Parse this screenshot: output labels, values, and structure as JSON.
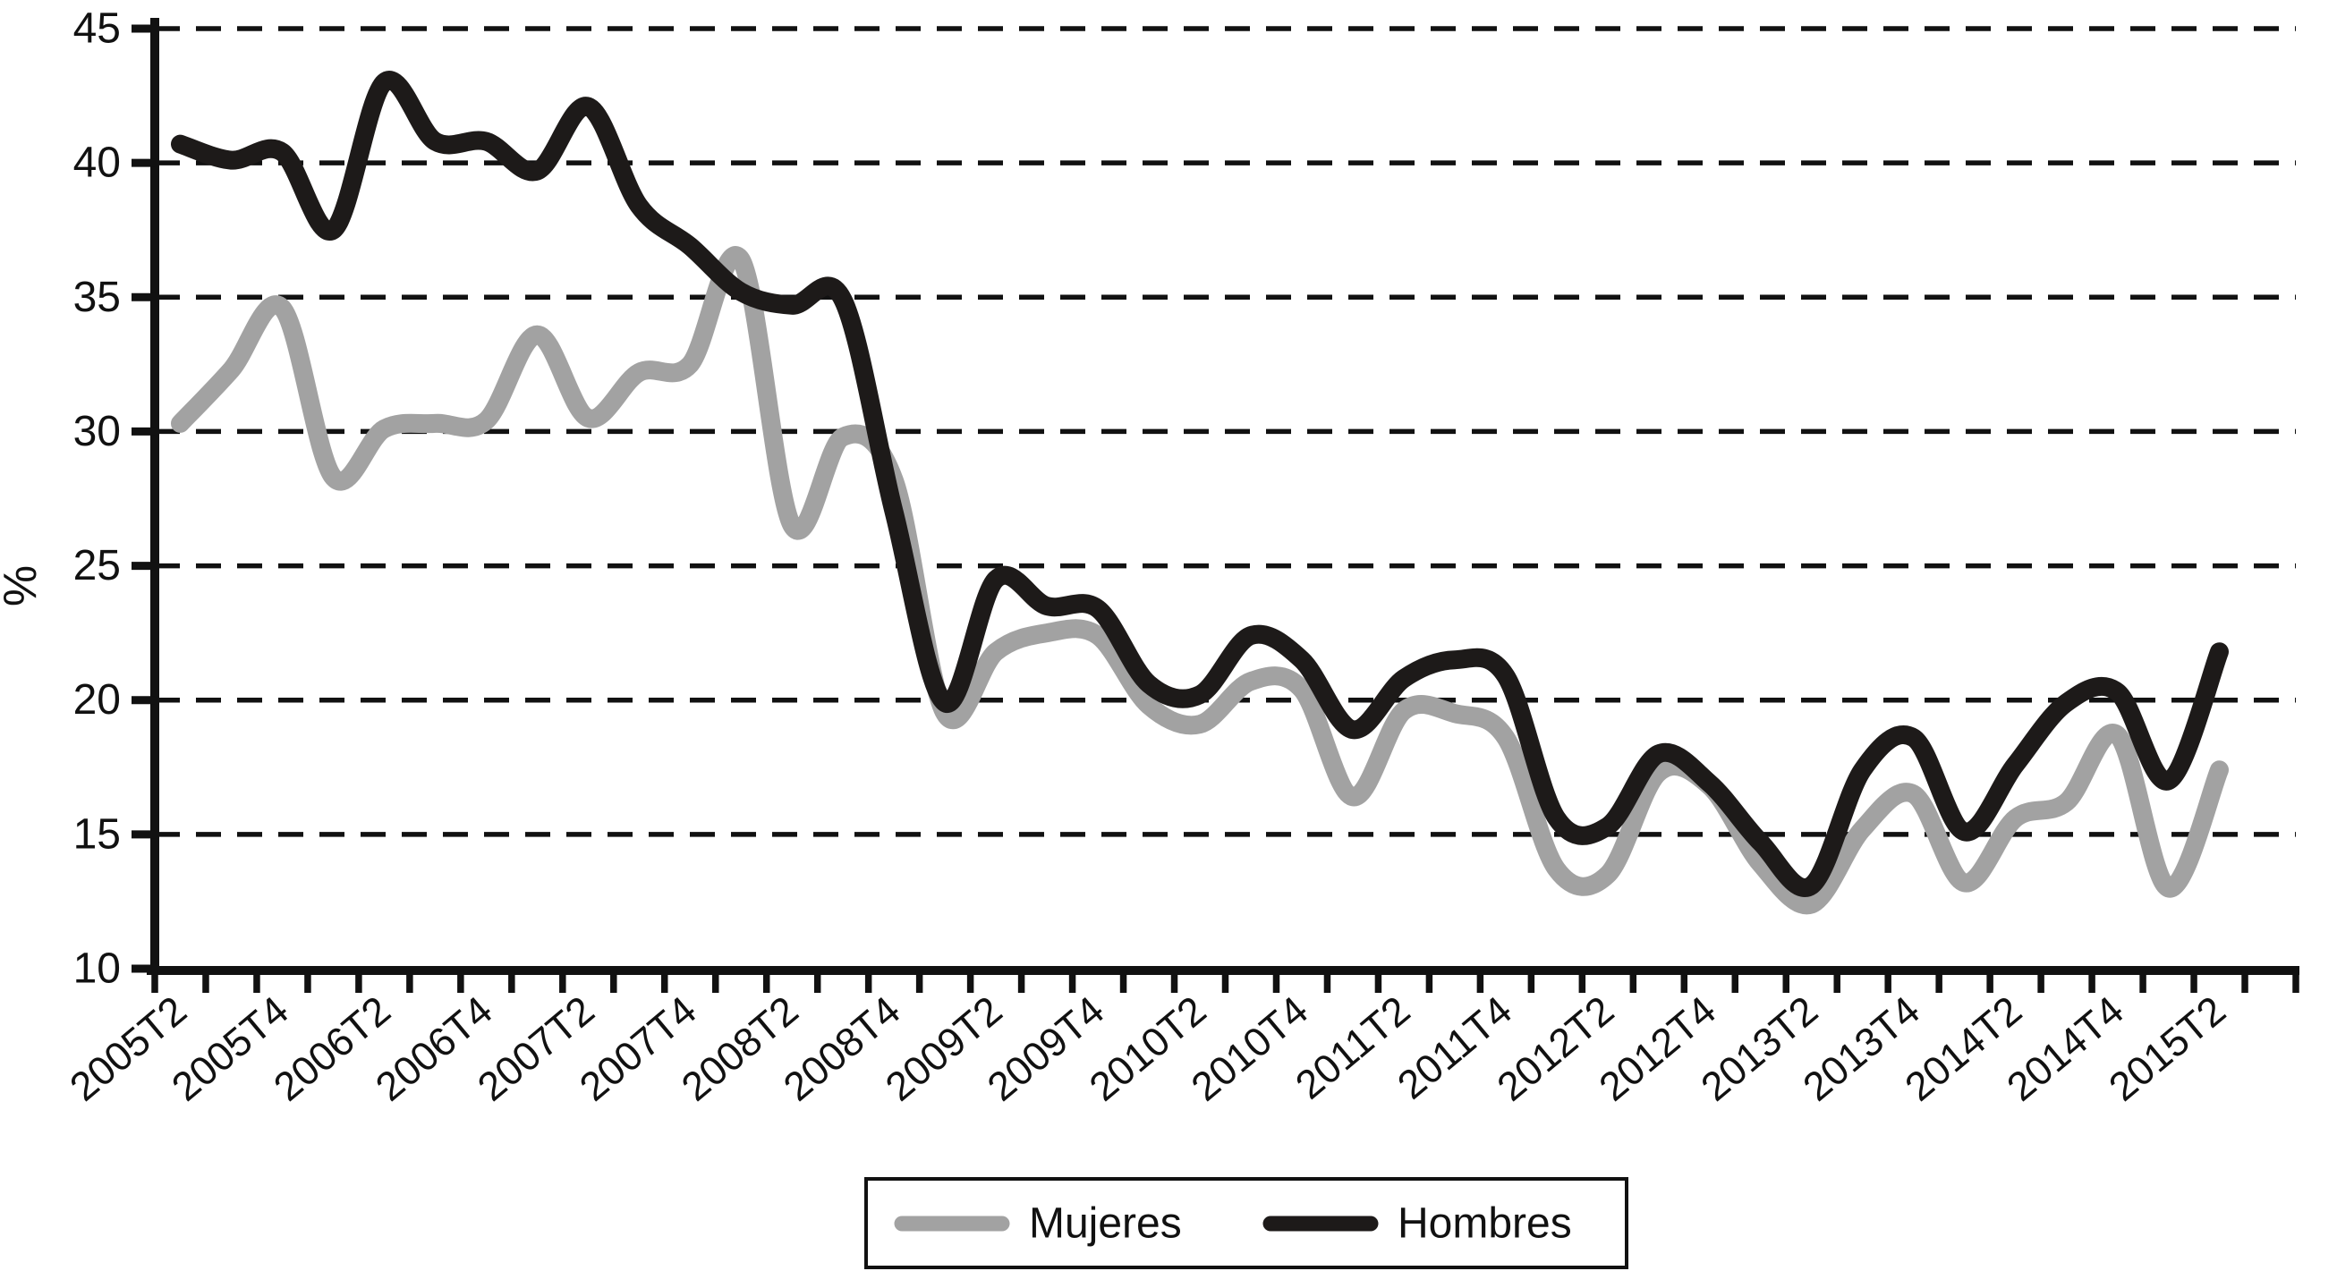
{
  "chart_data": {
    "type": "line",
    "title": "",
    "xlabel": "",
    "ylabel": "%",
    "ylim": [
      10,
      45
    ],
    "yticks": [
      45,
      40,
      35,
      30,
      25,
      20,
      15,
      10
    ],
    "grid": "horizontal-dashed",
    "legend_position": "bottom-center-boxed",
    "axis_color": "#111111",
    "gridline_color": "#111111",
    "x_tick_labels": [
      "2005T2",
      "2005T4",
      "2006T2",
      "2006T4",
      "2007T2",
      "2007T4",
      "2008T2",
      "2008T4",
      "2009T2",
      "2009T4",
      "2010T2",
      "2010T4",
      "2011T2",
      "2011T4",
      "2012T2",
      "2012T4",
      "2013T2",
      "2013T4",
      "2014T2",
      "2014T4",
      "2015T2"
    ],
    "categories": [
      "2005T2",
      "2005T3",
      "2005T4",
      "2006T1",
      "2006T2",
      "2006T3",
      "2006T4",
      "2007T1",
      "2007T2",
      "2007T3",
      "2007T4",
      "2008T1",
      "2008T2",
      "2008T3",
      "2008T4",
      "2009T1",
      "2009T2",
      "2009T3",
      "2009T4",
      "2010T1",
      "2010T2",
      "2010T3",
      "2010T4",
      "2011T1",
      "2011T2",
      "2011T3",
      "2011T4",
      "2012T1",
      "2012T2",
      "2012T3",
      "2012T4",
      "2013T1",
      "2013T2",
      "2013T3",
      "2013T4",
      "2014T1",
      "2014T2",
      "2014T3",
      "2014T4",
      "2015T1",
      "2015T2"
    ],
    "series": [
      {
        "name": "Mujeres",
        "color": "#a2a2a2",
        "values": [
          30.3,
          32.3,
          34.6,
          28.3,
          30.1,
          30.3,
          30.4,
          33.6,
          30.5,
          32.2,
          32.5,
          36.4,
          26.5,
          29.8,
          28.2,
          19.5,
          21.8,
          22.5,
          22.4,
          19.8,
          19.1,
          20.7,
          20.4,
          16.4,
          19.6,
          19.5,
          18.6,
          13.7,
          13.5,
          17.3,
          16.8,
          13.9,
          12.4,
          15.2,
          16.5,
          13.2,
          15.6,
          16.2,
          18.7,
          13.0,
          17.4
        ]
      },
      {
        "name": "Hombres",
        "color": "#1d1a19",
        "values": [
          40.7,
          40.1,
          40.4,
          37.5,
          43.0,
          40.8,
          40.8,
          39.7,
          42.1,
          38.4,
          36.9,
          35.2,
          34.7,
          34.9,
          27.0,
          19.9,
          24.5,
          23.5,
          23.4,
          20.6,
          20.2,
          22.4,
          21.5,
          18.9,
          20.8,
          21.5,
          20.9,
          15.6,
          15.3,
          18.0,
          16.9,
          14.7,
          13.1,
          17.4,
          18.6,
          15.1,
          17.6,
          19.9,
          20.3,
          17.0,
          21.8
        ]
      }
    ]
  }
}
